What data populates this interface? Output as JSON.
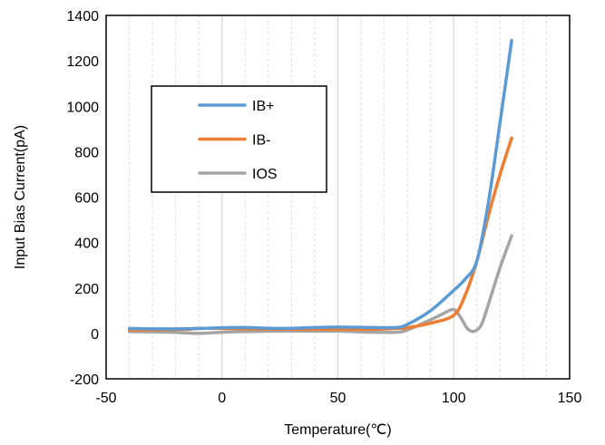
{
  "chart_data": {
    "type": "line",
    "title": "",
    "xlabel": "Temperature(℃)",
    "ylabel": "Input Bias Current(pA)",
    "xlim": [
      -50,
      150
    ],
    "ylim": [
      -200,
      1400
    ],
    "xticks": [
      -50,
      0,
      50,
      100,
      150
    ],
    "yticks": [
      -200,
      0,
      200,
      400,
      600,
      800,
      1000,
      1200,
      1400
    ],
    "grid": {
      "vertical": true,
      "horizontal": false,
      "minor_vertical_step": 10
    },
    "legend": {
      "placement": "upper-left inside plot",
      "boxed": true
    },
    "series": [
      {
        "name": "IB+",
        "color": "#5B9BD5",
        "x": [
          -40,
          -25,
          -10,
          0,
          10,
          25,
          40,
          50,
          65,
          75,
          80,
          90,
          100,
          105,
          110,
          115,
          120,
          125
        ],
        "y": [
          22,
          20,
          22,
          25,
          26,
          22,
          26,
          28,
          26,
          26,
          40,
          100,
          190,
          240,
          320,
          580,
          930,
          1290
        ]
      },
      {
        "name": "IB-",
        "color": "#ED7D31",
        "x": [
          -40,
          -25,
          -15,
          -10,
          0,
          10,
          25,
          40,
          50,
          65,
          75,
          80,
          90,
          100,
          105,
          110,
          115,
          120,
          125
        ],
        "y": [
          15,
          16,
          18,
          22,
          22,
          20,
          18,
          18,
          18,
          18,
          22,
          25,
          45,
          80,
          170,
          320,
          520,
          700,
          860
        ]
      },
      {
        "name": "IOS",
        "color": "#A5A5A5",
        "x": [
          -40,
          -25,
          -15,
          -10,
          0,
          10,
          25,
          40,
          50,
          65,
          75,
          80,
          90,
          95,
          100,
          103,
          106,
          109,
          112,
          115,
          120,
          125
        ],
        "y": [
          8,
          6,
          2,
          0,
          5,
          8,
          10,
          10,
          10,
          5,
          5,
          15,
          60,
          85,
          105,
          70,
          20,
          10,
          40,
          130,
          290,
          430
        ]
      }
    ]
  }
}
